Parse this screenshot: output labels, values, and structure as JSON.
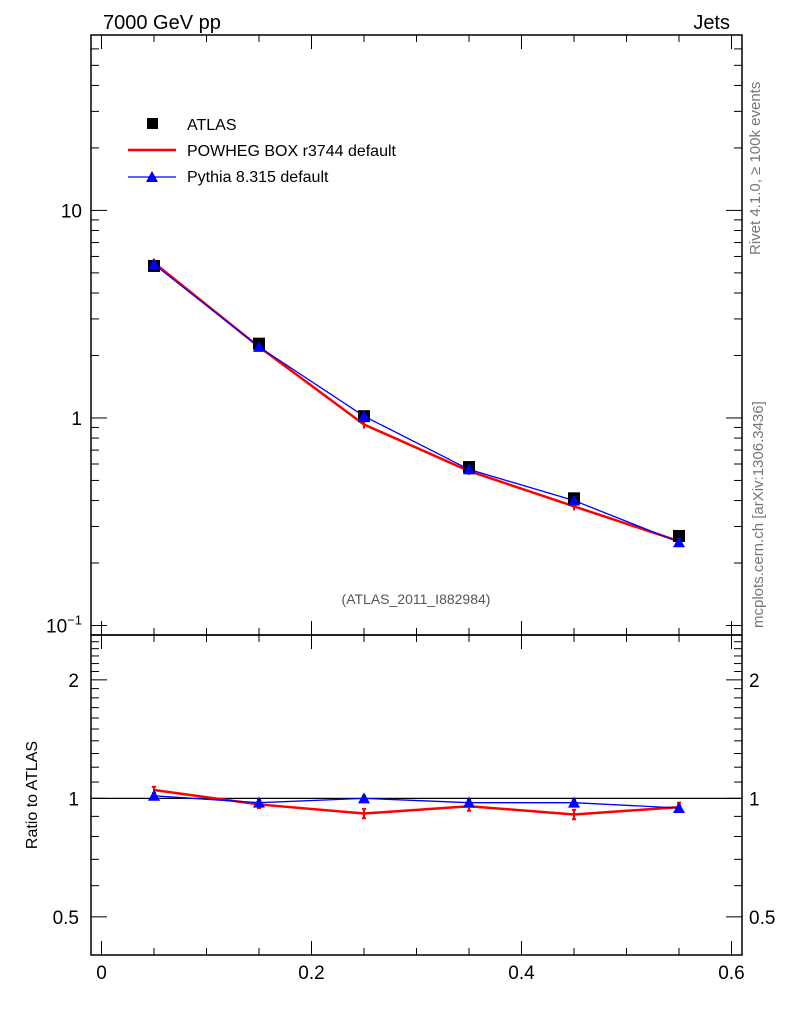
{
  "header": {
    "left_title": "7000 GeV pp",
    "right_title": "Jets"
  },
  "side": {
    "top_text": "Rivet 4.1.0, ≥ 100k events",
    "bottom_text": "mcplots.cern.ch [arXiv:1306.3436]"
  },
  "analysis_label": "(ATLAS_2011_I882984)",
  "ratio_ylabel": "Ratio to ATLAS",
  "colors": {
    "data": "#000000",
    "powheg": "#ff0000",
    "pythia": "#0000ff"
  },
  "chart_data": {
    "type": "line",
    "xlim": [
      -0.01,
      0.61
    ],
    "x_ticks": [
      0,
      0.2,
      0.4,
      0.6
    ],
    "x_tick_labels": [
      "0",
      "0.2",
      "0.4",
      "0.6"
    ],
    "x": [
      0.05,
      0.15,
      0.25,
      0.35,
      0.45,
      0.55
    ],
    "main": {
      "yscale": "log",
      "ylim": [
        0.09,
        70
      ],
      "y_tick_labels": [
        {
          "value": 10,
          "base": "10",
          "exp": ""
        },
        {
          "value": 1,
          "base": "1",
          "exp": ""
        },
        {
          "value": 0.1,
          "base": "10",
          "exp": "−1"
        }
      ],
      "series": [
        {
          "name": "ATLAS",
          "style": "data",
          "values": [
            5.4,
            2.28,
            1.02,
            0.58,
            0.41,
            0.27
          ]
        },
        {
          "name": "POWHEG BOX r3744 default",
          "style": "powheg",
          "values": [
            5.6,
            2.2,
            0.93,
            0.555,
            0.375,
            0.255
          ]
        },
        {
          "name": "Pythia 8.315 default",
          "style": "pythia",
          "values": [
            5.5,
            2.2,
            1.02,
            0.565,
            0.4,
            0.252
          ]
        }
      ]
    },
    "ratio": {
      "yscale": "log",
      "ylim": [
        0.4,
        2.6
      ],
      "y_tick_labels": [
        "0.5",
        "1",
        "2"
      ],
      "series": [
        {
          "name": "POWHEG BOX r3744 default",
          "style": "powheg",
          "values": [
            1.05,
            0.965,
            0.915,
            0.955,
            0.91,
            0.95
          ],
          "errors": [
            0.02,
            0.02,
            0.025,
            0.025,
            0.025,
            0.025
          ]
        },
        {
          "name": "Pythia 8.315 default",
          "style": "pythia",
          "values": [
            1.015,
            0.975,
            1.0,
            0.975,
            0.975,
            0.945
          ],
          "errors": [
            0.015,
            0.015,
            0.015,
            0.015,
            0.015,
            0.015
          ]
        }
      ]
    }
  }
}
